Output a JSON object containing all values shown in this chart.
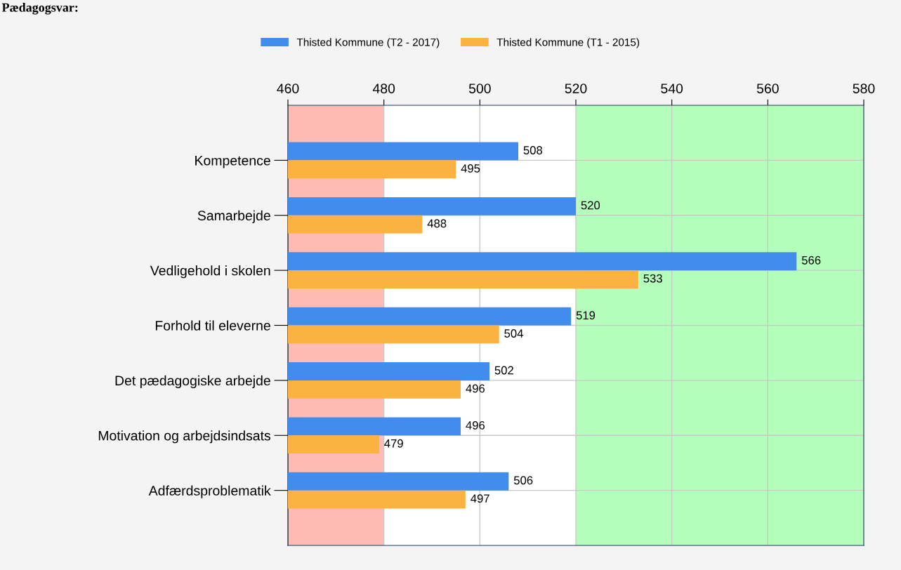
{
  "chart_data": {
    "type": "bar",
    "orientation": "horizontal",
    "title": "Pædagogsvar:",
    "categories": [
      "Kompetence",
      "Samarbejde",
      "Vedligehold i skolen",
      "Forhold til eleverne",
      "Det pædagogiske arbejde",
      "Motivation og arbejdsindsats",
      "Adfærdsproblematik"
    ],
    "series": [
      {
        "name": "Thisted Kommune (T2 - 2017)",
        "color": "#428cee",
        "values": [
          508,
          520,
          566,
          519,
          502,
          496,
          506
        ]
      },
      {
        "name": "Thisted Kommune (T1 - 2015)",
        "color": "#fbb240",
        "values": [
          495,
          488,
          533,
          504,
          496,
          479,
          497
        ]
      }
    ],
    "xlim": [
      460,
      580
    ],
    "xticks": [
      460,
      480,
      500,
      520,
      540,
      560,
      580
    ],
    "bands": [
      {
        "axis": "x",
        "from": 460,
        "to": 480,
        "color": "#ffbcb4"
      },
      {
        "axis": "x",
        "from": 520,
        "to": 580,
        "color": "#b4ffbc"
      }
    ],
    "data_labels": true,
    "grid": true,
    "legend": "top"
  }
}
